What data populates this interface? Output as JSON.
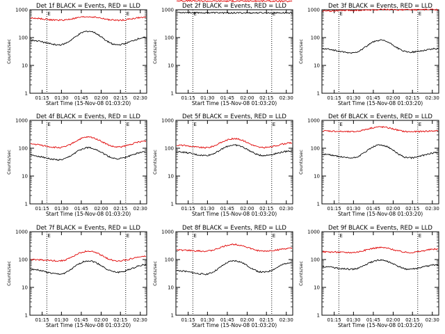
{
  "chart_data": [
    {
      "type": "line",
      "title": "Det 1f BLACK = Events, RED = LLD",
      "ylabel": "Counts/sec",
      "xlabel": "Start Time (15-Nov-08 01:03:20)",
      "black": [
        [
          0,
          80
        ],
        [
          0.25,
          55
        ],
        [
          0.5,
          170
        ],
        [
          0.75,
          55
        ],
        [
          1,
          100
        ]
      ],
      "red": [
        [
          0,
          500
        ],
        [
          0.25,
          420
        ],
        [
          0.5,
          560
        ],
        [
          0.75,
          420
        ],
        [
          1,
          530
        ]
      ]
    },
    {
      "type": "line",
      "title": "Det 2f BLACK = Events, RED = LLD",
      "ylabel": "Counts/sec",
      "xlabel": "Start Time (15-Nov-08 01:03:20)",
      "black": [
        [
          0,
          800
        ],
        [
          0.25,
          780
        ],
        [
          0.5,
          770
        ],
        [
          0.75,
          770
        ],
        [
          1,
          770
        ]
      ],
      "red": [
        [
          0,
          2100
        ],
        [
          0.25,
          2050
        ],
        [
          0.5,
          2050
        ],
        [
          0.75,
          2050
        ],
        [
          1,
          2000
        ]
      ]
    },
    {
      "type": "line",
      "title": "Det 3f BLACK = Events, RED = LLD",
      "ylabel": "Counts/sec",
      "xlabel": "Start Time (15-Nov-08 01:03:20)",
      "black": [
        [
          0,
          40
        ],
        [
          0.25,
          28
        ],
        [
          0.5,
          80
        ],
        [
          0.75,
          30
        ],
        [
          1,
          40
        ]
      ],
      "red": [
        [
          0,
          900
        ],
        [
          0.25,
          950
        ],
        [
          0.5,
          1000
        ],
        [
          0.75,
          1000
        ],
        [
          1,
          1020
        ]
      ]
    },
    {
      "type": "line",
      "title": "Det 4f BLACK = Events, RED = LLD",
      "ylabel": "Counts/sec",
      "xlabel": "Start Time (15-Nov-08 01:03:20)",
      "black": [
        [
          0,
          55
        ],
        [
          0.25,
          38
        ],
        [
          0.5,
          105
        ],
        [
          0.75,
          42
        ],
        [
          1,
          75
        ]
      ],
      "red": [
        [
          0,
          140
        ],
        [
          0.25,
          105
        ],
        [
          0.5,
          250
        ],
        [
          0.75,
          110
        ],
        [
          1,
          180
        ]
      ]
    },
    {
      "type": "line",
      "title": "Det 5f BLACK = Events, RED = LLD",
      "ylabel": "Counts/sec",
      "xlabel": "Start Time (15-Nov-08 01:03:20)",
      "black": [
        [
          0,
          75
        ],
        [
          0.25,
          55
        ],
        [
          0.5,
          130
        ],
        [
          0.75,
          55
        ],
        [
          1,
          80
        ]
      ],
      "red": [
        [
          0,
          130
        ],
        [
          0.25,
          105
        ],
        [
          0.5,
          220
        ],
        [
          0.75,
          105
        ],
        [
          1,
          155
        ]
      ]
    },
    {
      "type": "line",
      "title": "Det 6f BLACK = Events, RED = LLD",
      "ylabel": "Counts/sec",
      "xlabel": "Start Time (15-Nov-08 01:03:20)",
      "black": [
        [
          0,
          60
        ],
        [
          0.25,
          45
        ],
        [
          0.5,
          130
        ],
        [
          0.75,
          45
        ],
        [
          1,
          70
        ]
      ],
      "red": [
        [
          0,
          420
        ],
        [
          0.25,
          390
        ],
        [
          0.5,
          580
        ],
        [
          0.75,
          390
        ],
        [
          1,
          420
        ]
      ]
    },
    {
      "type": "line",
      "title": "Det 7f BLACK = Events, RED = LLD",
      "ylabel": "Counts/sec",
      "xlabel": "Start Time (15-Nov-08 01:03:20)",
      "black": [
        [
          0,
          45
        ],
        [
          0.25,
          30
        ],
        [
          0.5,
          90
        ],
        [
          0.75,
          35
        ],
        [
          1,
          65
        ]
      ],
      "red": [
        [
          0,
          100
        ],
        [
          0.25,
          90
        ],
        [
          0.5,
          200
        ],
        [
          0.75,
          90
        ],
        [
          1,
          130
        ]
      ]
    },
    {
      "type": "line",
      "title": "Det 8f BLACK = Events, RED = LLD",
      "ylabel": "Counts/sec",
      "xlabel": "Start Time (15-Nov-08 01:03:20)",
      "black": [
        [
          0,
          40
        ],
        [
          0.25,
          30
        ],
        [
          0.5,
          90
        ],
        [
          0.75,
          35
        ],
        [
          1,
          80
        ]
      ],
      "red": [
        [
          0,
          220
        ],
        [
          0.25,
          200
        ],
        [
          0.5,
          350
        ],
        [
          0.75,
          200
        ],
        [
          1,
          250
        ]
      ]
    },
    {
      "type": "line",
      "title": "Det 9f BLACK = Events, RED = LLD",
      "ylabel": "Counts/sec",
      "xlabel": "Start Time (15-Nov-08 01:03:20)",
      "black": [
        [
          0,
          55
        ],
        [
          0.25,
          45
        ],
        [
          0.5,
          95
        ],
        [
          0.75,
          45
        ],
        [
          1,
          65
        ]
      ],
      "red": [
        [
          0,
          190
        ],
        [
          0.25,
          180
        ],
        [
          0.5,
          270
        ],
        [
          0.75,
          180
        ],
        [
          1,
          240
        ]
      ]
    }
  ],
  "shared": {
    "x_tick_labels": [
      "01:15",
      "01:30",
      "01:45",
      "02:00",
      "02:15",
      "02:30"
    ],
    "y_tick_labels": [
      "1",
      "10",
      "100",
      "1000"
    ],
    "marker": "E",
    "ylim": [
      1,
      1000
    ],
    "yscale": "log",
    "series_colors": {
      "black": "#000000",
      "red": "#e00000"
    }
  }
}
